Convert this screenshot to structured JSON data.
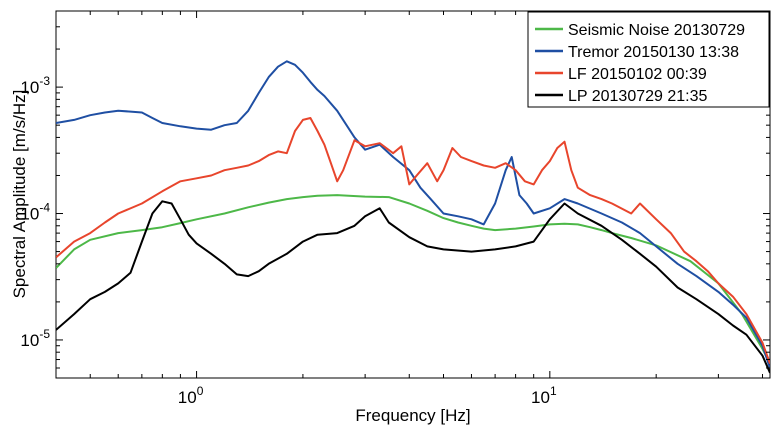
{
  "chart_data": {
    "type": "line",
    "title": "",
    "xlabel": "Frequency  [Hz]",
    "ylabel": "Spectral Amplitude [m/s/Hz]",
    "xscale": "log",
    "yscale": "log",
    "xlim": [
      0.4,
      42
    ],
    "ylim": [
      5e-06,
      0.004
    ],
    "x_ticks": [
      {
        "value": 1,
        "label": "10",
        "exp": "0"
      },
      {
        "value": 10,
        "label": "10",
        "exp": "1"
      }
    ],
    "y_ticks": [
      {
        "value": 0.001,
        "label": "10",
        "exp": "-3"
      },
      {
        "value": 0.0001,
        "label": "10",
        "exp": "-4"
      },
      {
        "value": 1e-05,
        "label": "10",
        "exp": "-5"
      }
    ],
    "grid": false,
    "legend_position": "top-right",
    "series": [
      {
        "name": "Seismic Noise 20130729",
        "color": "#4db848",
        "points": [
          [
            0.4,
            3.7e-05
          ],
          [
            0.45,
            5.2e-05
          ],
          [
            0.5,
            6.2e-05
          ],
          [
            0.6,
            7e-05
          ],
          [
            0.7,
            7.4e-05
          ],
          [
            0.8,
            7.8e-05
          ],
          [
            0.9,
            8.4e-05
          ],
          [
            1.0,
            9e-05
          ],
          [
            1.2,
            0.0001
          ],
          [
            1.4,
            0.000112
          ],
          [
            1.6,
            0.000122
          ],
          [
            1.8,
            0.00013
          ],
          [
            2.0,
            0.000135
          ],
          [
            2.2,
            0.000138
          ],
          [
            2.5,
            0.00014
          ],
          [
            3.0,
            0.000136
          ],
          [
            3.5,
            0.000135
          ],
          [
            4.0,
            0.00012
          ],
          [
            4.5,
            0.000105
          ],
          [
            5.0,
            9.2e-05
          ],
          [
            5.5,
            8.5e-05
          ],
          [
            6.0,
            8e-05
          ],
          [
            6.5,
            7.6e-05
          ],
          [
            7.0,
            7.4e-05
          ],
          [
            8.0,
            7.6e-05
          ],
          [
            9.0,
            7.9e-05
          ],
          [
            10.0,
            8.2e-05
          ],
          [
            11.0,
            8.3e-05
          ],
          [
            12.0,
            8.2e-05
          ],
          [
            13.0,
            7.8e-05
          ],
          [
            14.0,
            7.4e-05
          ],
          [
            15.0,
            7e-05
          ],
          [
            17.0,
            6.4e-05
          ],
          [
            20.0,
            5.6e-05
          ],
          [
            25.0,
            4.2e-05
          ],
          [
            30.0,
            2.8e-05
          ],
          [
            35.0,
            1.6e-05
          ],
          [
            40.0,
            8.5e-06
          ],
          [
            42.0,
            6.5e-06
          ]
        ]
      },
      {
        "name": "Tremor 20150130 13:38",
        "color": "#1f4fa3",
        "points": [
          [
            0.4,
            0.00052
          ],
          [
            0.45,
            0.00055
          ],
          [
            0.5,
            0.0006
          ],
          [
            0.55,
            0.00063
          ],
          [
            0.6,
            0.00065
          ],
          [
            0.65,
            0.00064
          ],
          [
            0.7,
            0.00063
          ],
          [
            0.75,
            0.00057
          ],
          [
            0.8,
            0.00052
          ],
          [
            0.9,
            0.00049
          ],
          [
            1.0,
            0.00047
          ],
          [
            1.1,
            0.00046
          ],
          [
            1.2,
            0.0005
          ],
          [
            1.3,
            0.00052
          ],
          [
            1.4,
            0.00065
          ],
          [
            1.5,
            0.0009
          ],
          [
            1.6,
            0.0012
          ],
          [
            1.7,
            0.00145
          ],
          [
            1.8,
            0.0016
          ],
          [
            1.9,
            0.0015
          ],
          [
            2.0,
            0.0013
          ],
          [
            2.1,
            0.0011
          ],
          [
            2.2,
            0.00095
          ],
          [
            2.3,
            0.00085
          ],
          [
            2.5,
            0.00065
          ],
          [
            2.8,
            0.0004
          ],
          [
            3.0,
            0.00032
          ],
          [
            3.3,
            0.00035
          ],
          [
            3.6,
            0.00028
          ],
          [
            4.0,
            0.00022
          ],
          [
            4.3,
            0.00016
          ],
          [
            4.6,
            0.00013
          ],
          [
            5.0,
            0.0001
          ],
          [
            5.5,
            9.5e-05
          ],
          [
            6.0,
            9e-05
          ],
          [
            6.5,
            8.2e-05
          ],
          [
            7.0,
            0.00012
          ],
          [
            7.5,
            0.00022
          ],
          [
            7.8,
            0.00028
          ],
          [
            8.2,
            0.00014
          ],
          [
            8.6,
            0.00012
          ],
          [
            9.0,
            0.0001
          ],
          [
            10.0,
            0.00011
          ],
          [
            11.0,
            0.00013
          ],
          [
            12.0,
            0.00012
          ],
          [
            14.0,
            0.0001
          ],
          [
            16.0,
            8.5e-05
          ],
          [
            18.0,
            7e-05
          ],
          [
            20.0,
            5.5e-05
          ],
          [
            23.0,
            4e-05
          ],
          [
            26.0,
            3.2e-05
          ],
          [
            30.0,
            2.4e-05
          ],
          [
            33.0,
            1.9e-05
          ],
          [
            36.0,
            1.5e-05
          ],
          [
            40.0,
            9e-06
          ],
          [
            42.0,
            6e-06
          ]
        ]
      },
      {
        "name": "LF 20150102 00:39",
        "color": "#e8452c",
        "points": [
          [
            0.4,
            4.5e-05
          ],
          [
            0.45,
            6e-05
          ],
          [
            0.5,
            7e-05
          ],
          [
            0.55,
            8.5e-05
          ],
          [
            0.6,
            0.0001
          ],
          [
            0.7,
            0.00012
          ],
          [
            0.8,
            0.00015
          ],
          [
            0.9,
            0.00018
          ],
          [
            1.0,
            0.00019
          ],
          [
            1.1,
            0.0002
          ],
          [
            1.2,
            0.00022
          ],
          [
            1.3,
            0.00023
          ],
          [
            1.4,
            0.00024
          ],
          [
            1.5,
            0.00026
          ],
          [
            1.6,
            0.00029
          ],
          [
            1.7,
            0.00031
          ],
          [
            1.8,
            0.0003
          ],
          [
            1.9,
            0.00045
          ],
          [
            2.0,
            0.00055
          ],
          [
            2.1,
            0.00057
          ],
          [
            2.2,
            0.00045
          ],
          [
            2.3,
            0.00035
          ],
          [
            2.4,
            0.00025
          ],
          [
            2.5,
            0.00018
          ],
          [
            2.6,
            0.00022
          ],
          [
            2.8,
            0.00038
          ],
          [
            3.0,
            0.00034
          ],
          [
            3.3,
            0.00036
          ],
          [
            3.6,
            0.0003
          ],
          [
            3.8,
            0.00034
          ],
          [
            4.0,
            0.00017
          ],
          [
            4.2,
            0.0002
          ],
          [
            4.5,
            0.00025
          ],
          [
            4.8,
            0.00018
          ],
          [
            5.0,
            0.00022
          ],
          [
            5.3,
            0.00033
          ],
          [
            5.6,
            0.00028
          ],
          [
            6.0,
            0.00026
          ],
          [
            6.5,
            0.00024
          ],
          [
            7.0,
            0.00023
          ],
          [
            7.5,
            0.00025
          ],
          [
            8.0,
            0.00022
          ],
          [
            8.5,
            0.00018
          ],
          [
            9.0,
            0.00017
          ],
          [
            9.5,
            0.00022
          ],
          [
            10.0,
            0.00026
          ],
          [
            10.5,
            0.00033
          ],
          [
            11.0,
            0.00037
          ],
          [
            11.5,
            0.00022
          ],
          [
            12.0,
            0.00016
          ],
          [
            13.0,
            0.00014
          ],
          [
            14.0,
            0.00013
          ],
          [
            15.0,
            0.00012
          ],
          [
            17.0,
            0.0001
          ],
          [
            18.0,
            0.00012
          ],
          [
            20.0,
            9e-05
          ],
          [
            22.0,
            7e-05
          ],
          [
            24.0,
            5e-05
          ],
          [
            26.0,
            4.2e-05
          ],
          [
            28.0,
            3.5e-05
          ],
          [
            30.0,
            2.8e-05
          ],
          [
            33.0,
            2.2e-05
          ],
          [
            36.0,
            1.6e-05
          ],
          [
            40.0,
            9.5e-06
          ],
          [
            42.0,
            6.5e-06
          ]
        ]
      },
      {
        "name": "LP 20130729 21:35",
        "color": "#000000",
        "points": [
          [
            0.4,
            1.2e-05
          ],
          [
            0.45,
            1.6e-05
          ],
          [
            0.5,
            2.1e-05
          ],
          [
            0.55,
            2.4e-05
          ],
          [
            0.6,
            2.8e-05
          ],
          [
            0.65,
            3.4e-05
          ],
          [
            0.7,
            6e-05
          ],
          [
            0.75,
            0.0001
          ],
          [
            0.8,
            0.000125
          ],
          [
            0.85,
            0.00012
          ],
          [
            0.9,
            9e-05
          ],
          [
            0.95,
            6.8e-05
          ],
          [
            1.0,
            5.8e-05
          ],
          [
            1.1,
            4.8e-05
          ],
          [
            1.2,
            4e-05
          ],
          [
            1.3,
            3.3e-05
          ],
          [
            1.4,
            3.2e-05
          ],
          [
            1.5,
            3.5e-05
          ],
          [
            1.6,
            4e-05
          ],
          [
            1.8,
            4.8e-05
          ],
          [
            2.0,
            6e-05
          ],
          [
            2.2,
            6.8e-05
          ],
          [
            2.5,
            7e-05
          ],
          [
            2.8,
            8e-05
          ],
          [
            3.0,
            9.5e-05
          ],
          [
            3.3,
            0.00011
          ],
          [
            3.5,
            8.5e-05
          ],
          [
            4.0,
            6.5e-05
          ],
          [
            4.5,
            5.5e-05
          ],
          [
            5.0,
            5.2e-05
          ],
          [
            6.0,
            5e-05
          ],
          [
            7.0,
            5.2e-05
          ],
          [
            8.0,
            5.5e-05
          ],
          [
            9.0,
            6e-05
          ],
          [
            10.0,
            9e-05
          ],
          [
            11.0,
            0.00012
          ],
          [
            12.0,
            0.0001
          ],
          [
            14.0,
            8e-05
          ],
          [
            16.0,
            6.2e-05
          ],
          [
            18.0,
            4.8e-05
          ],
          [
            20.0,
            3.8e-05
          ],
          [
            23.0,
            2.6e-05
          ],
          [
            26.0,
            2.1e-05
          ],
          [
            30.0,
            1.6e-05
          ],
          [
            33.0,
            1.3e-05
          ],
          [
            36.0,
            1.1e-05
          ],
          [
            40.0,
            7.5e-06
          ],
          [
            42.0,
            5.5e-06
          ]
        ]
      }
    ]
  }
}
